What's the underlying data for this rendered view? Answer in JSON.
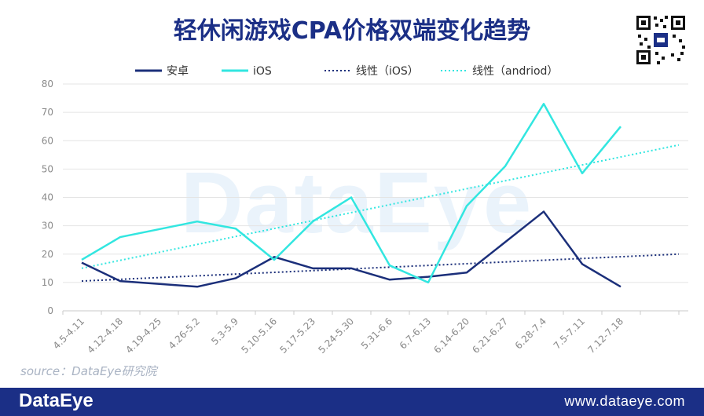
{
  "title": "轻休闲游戏CPA价格双端变化趋势",
  "source": "source：DataEye研究院",
  "watermark": "DataEye",
  "footer": {
    "brand": "DataEye",
    "site": "www.dataeye.com"
  },
  "colors": {
    "android": "#1b2f7a",
    "ios": "#32e6e0",
    "title": "#1b2f86",
    "footer": "#1b2f86"
  },
  "chart_data": {
    "type": "line",
    "title": "轻休闲游戏CPA价格双端变化趋势",
    "xlabel": "",
    "ylabel": "",
    "categories": [
      "4.5-4.11",
      "4.12-4.18",
      "4.19-4.25",
      "4.26-5.2",
      "5.3-5.9",
      "5.10-5.16",
      "5.17-5.23",
      "5.24-5.30",
      "5.31-6.6",
      "6.7-6.13",
      "6.14-6.20",
      "6.21-6.27",
      "6.28-7.4",
      "7.5-7.11",
      "7.12-7.18"
    ],
    "yticks": [
      "0",
      "10",
      "20",
      "30",
      "40",
      "50",
      "60",
      "70",
      "80"
    ],
    "ylim": [
      0,
      80
    ],
    "grid": true,
    "legend_position": "top",
    "series": [
      {
        "name": "安卓",
        "values": [
          17,
          10.5,
          null,
          8.5,
          11.5,
          19,
          15,
          15,
          11,
          12,
          13.5,
          null,
          35,
          16.5,
          8.5
        ]
      },
      {
        "name": "iOS",
        "values": [
          18,
          26,
          null,
          31.5,
          29,
          18,
          31.5,
          40,
          16,
          10,
          37,
          51,
          73,
          48.5,
          65
        ]
      }
    ],
    "trendlines": [
      {
        "name": "线性（iOS）",
        "start": 10.5,
        "end": 20
      },
      {
        "name": "线性（andriod）",
        "start": 15,
        "end": 58.5
      }
    ]
  }
}
